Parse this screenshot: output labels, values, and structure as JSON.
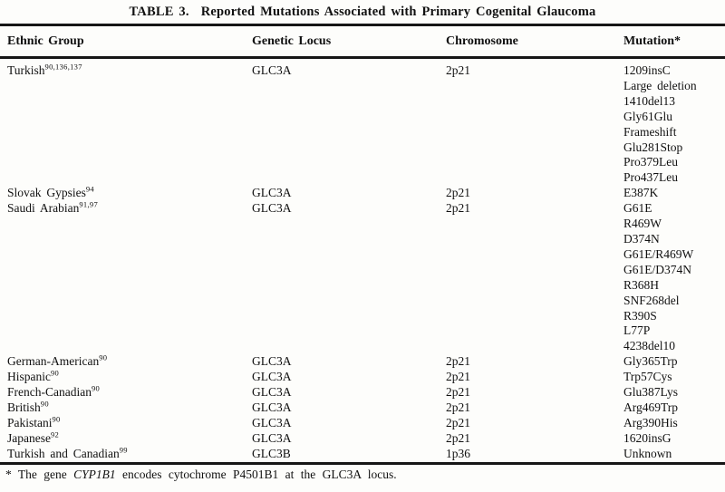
{
  "title": {
    "label": "TABLE 3.",
    "text": "Reported Mutations Associated with Primary Cogenital Glaucoma"
  },
  "columns": [
    "Ethnic Group",
    "Genetic Locus",
    "Chromosome",
    "Mutation*"
  ],
  "rows": [
    {
      "ethnic_group": "Turkish",
      "refs": "90,136,137",
      "genetic_locus": "GLC3A",
      "chromosome": "2p21",
      "mutations": [
        "1209insC",
        "Large deletion",
        "1410del13",
        "Gly61Glu",
        "Frameshift",
        "Glu281Stop",
        "Pro379Leu",
        "Pro437Leu"
      ]
    },
    {
      "ethnic_group": "Slovak Gypsies",
      "refs": "94",
      "genetic_locus": "GLC3A",
      "chromosome": "2p21",
      "mutations": [
        "E387K"
      ]
    },
    {
      "ethnic_group": "Saudi Arabian",
      "refs": "91,97",
      "genetic_locus": "GLC3A",
      "chromosome": "2p21",
      "mutations": [
        "G61E",
        "R469W",
        "D374N",
        "G61E/R469W",
        "G61E/D374N",
        "R368H",
        "SNF268del",
        "R390S",
        "L77P",
        "4238del10"
      ]
    },
    {
      "ethnic_group": "German-American",
      "refs": "90",
      "genetic_locus": "GLC3A",
      "chromosome": "2p21",
      "mutations": [
        "Gly365Trp"
      ]
    },
    {
      "ethnic_group": "Hispanic",
      "refs": "90",
      "genetic_locus": "GLC3A",
      "chromosome": "2p21",
      "mutations": [
        "Trp57Cys"
      ]
    },
    {
      "ethnic_group": "French-Canadian",
      "refs": "90",
      "genetic_locus": "GLC3A",
      "chromosome": "2p21",
      "mutations": [
        "Glu387Lys"
      ]
    },
    {
      "ethnic_group": "British",
      "refs": "90",
      "genetic_locus": "GLC3A",
      "chromosome": "2p21",
      "mutations": [
        "Arg469Trp"
      ]
    },
    {
      "ethnic_group": "Pakistani",
      "refs": "90",
      "genetic_locus": "GLC3A",
      "chromosome": "2p21",
      "mutations": [
        "Arg390His"
      ]
    },
    {
      "ethnic_group": "Japanese",
      "refs": "92",
      "genetic_locus": "GLC3A",
      "chromosome": "2p21",
      "mutations": [
        "1620insG"
      ]
    },
    {
      "ethnic_group": "Turkish and Canadian",
      "refs": "99",
      "genetic_locus": "GLC3B",
      "chromosome": "1p36",
      "mutations": [
        "Unknown"
      ]
    }
  ],
  "footnote": {
    "marker": "*",
    "part1": "The gene",
    "gene": "CYP1B1",
    "part2": "encodes cytochrome P4501B1 at the GLC3A locus."
  },
  "colors": {
    "text": "#111111",
    "rule": "#161616",
    "background": "#fdfdfb"
  }
}
